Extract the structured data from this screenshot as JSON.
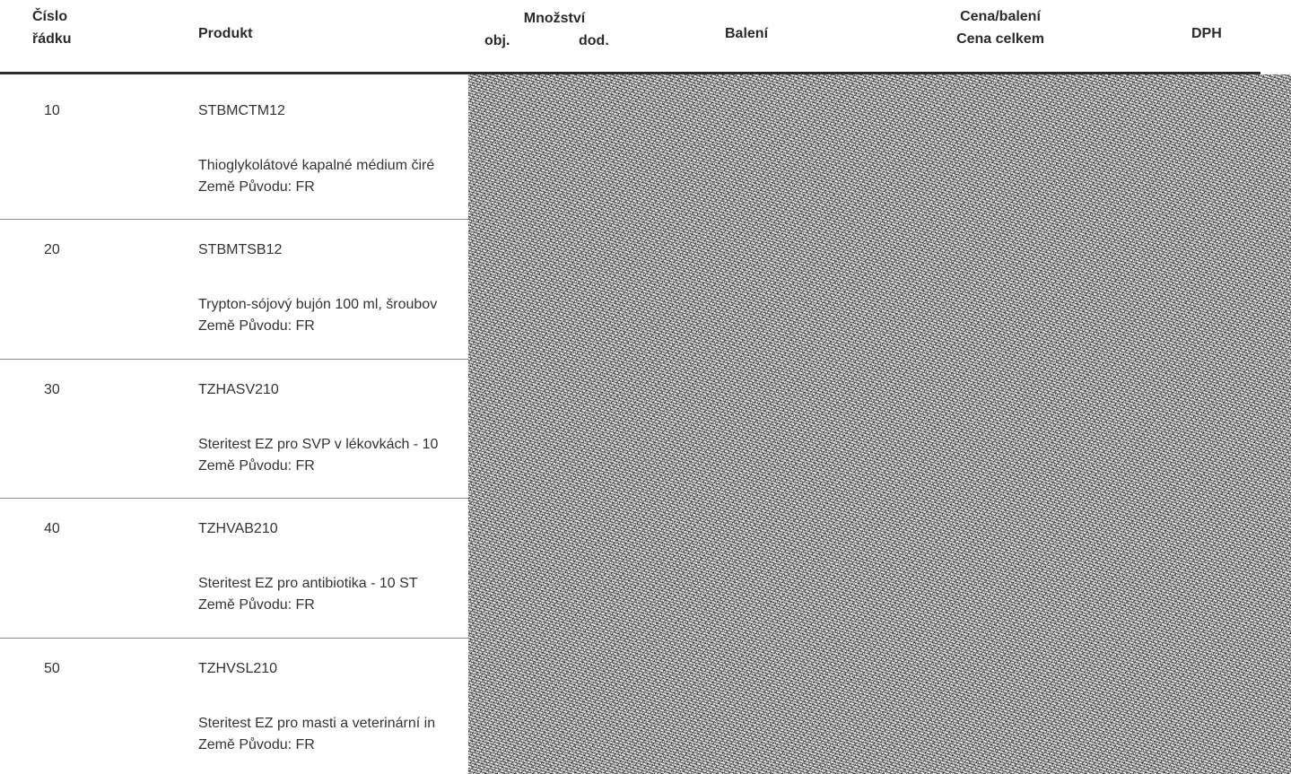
{
  "header": {
    "line_no": [
      "Číslo",
      "řádku"
    ],
    "product": "Produkt",
    "quantity": "Množství",
    "qty_ordered": "obj.",
    "qty_delivered": "dod.",
    "package": "Balení",
    "price": [
      "Cena/balení",
      "Cena celkem"
    ],
    "vat": "DPH"
  },
  "rows": [
    {
      "no": "10",
      "code": "STBMCTM12",
      "description": "Thioglykolátové kapalné médium čiré",
      "origin": "Země Původu: FR"
    },
    {
      "no": "20",
      "code": "STBMTSB12",
      "description": "Trypton-sójový bujón 100 ml, šroubov",
      "origin": "Země Původu: FR"
    },
    {
      "no": "30",
      "code": "TZHASV210",
      "description": "Steritest EZ pro SVP v lékovkách - 10",
      "origin": "Země Původu: FR"
    },
    {
      "no": "40",
      "code": "TZHVAB210",
      "description": "Steritest EZ pro antibiotika - 10 ST",
      "origin": "Země Původu: FR"
    },
    {
      "no": "50",
      "code": "TZHVSL210",
      "description": "Steritest EZ pro masti a veterinární in",
      "origin": "Země Původu: FR"
    }
  ]
}
